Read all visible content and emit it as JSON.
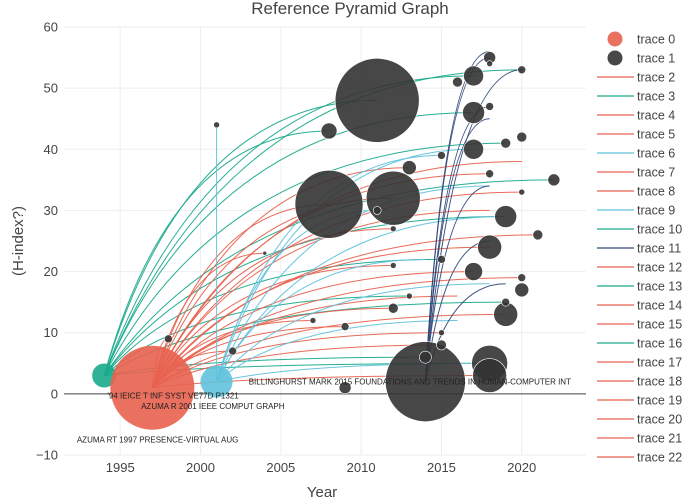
{
  "chart_data": {
    "type": "scatter",
    "title": "Reference Pyramid Graph",
    "xlabel": "Year",
    "ylabel": "(H-index?)",
    "xlim": [
      1991.5,
      2024
    ],
    "ylim": [
      -10,
      60
    ],
    "x_ticks": [
      1995,
      2000,
      2005,
      2010,
      2015,
      2020
    ],
    "y_ticks": [
      -10,
      0,
      10,
      20,
      30,
      40,
      50,
      60
    ],
    "grid": true,
    "legend_position": "right",
    "legend": [
      "trace 0",
      "trace 1",
      "trace 2",
      "trace 3",
      "trace 4",
      "trace 5",
      "trace 6",
      "trace 7",
      "trace 8",
      "trace 9",
      "trace 10",
      "trace 11",
      "trace 12",
      "trace 13",
      "trace 14",
      "trace 15",
      "trace 16",
      "trace 17",
      "trace 18",
      "trace 19",
      "trace 20",
      "trace 21",
      "trace 22"
    ],
    "annotations": [
      {
        "text": "BILLINGHURST MARK 2015 FOUNDATIONS AND TRENDS IN HUMAN-COMPUTER INT",
        "x": 2003,
        "y": 2
      },
      {
        "text": "'94 IEICE T INF SYST VE77D P1321",
        "x": 1994.2,
        "y": -0.3
      },
      {
        "text": "AZUMA R 2001 IEEE COMPUT GRAPH",
        "x": 1996.3,
        "y": -2
      },
      {
        "text": "AZUMA RT 1997 PRESENCE-VIRTUAL AUG",
        "x": 1992.3,
        "y": -7.5
      }
    ],
    "series": [
      {
        "name": "trace 0",
        "color": "#e8624f",
        "points": [
          {
            "x": 1994,
            "y": 3,
            "size": 12,
            "color": "#1aaa8c"
          },
          {
            "x": 1997,
            "y": 1,
            "size": 42,
            "color": "#e8624f"
          },
          {
            "x": 2001,
            "y": 2,
            "size": 16,
            "color": "#5fc2dc"
          }
        ]
      },
      {
        "name": "trace 1",
        "color": "#333333",
        "points": [
          {
            "x": 2011,
            "y": 48,
            "size": 42
          },
          {
            "x": 2008,
            "y": 31,
            "size": 34
          },
          {
            "x": 2012,
            "y": 32,
            "size": 27
          },
          {
            "x": 2014,
            "y": 2,
            "size": 40
          },
          {
            "x": 2018,
            "y": 5,
            "size": 18
          },
          {
            "x": 2018,
            "y": 3,
            "size": 17
          },
          {
            "x": 2017,
            "y": 46,
            "size": 11
          },
          {
            "x": 2017,
            "y": 40,
            "size": 10
          },
          {
            "x": 2019,
            "y": 29,
            "size": 11
          },
          {
            "x": 2018,
            "y": 24,
            "size": 12
          },
          {
            "x": 2019,
            "y": 13,
            "size": 12
          },
          {
            "x": 2017,
            "y": 52,
            "size": 10
          },
          {
            "x": 2008,
            "y": 43,
            "size": 8
          },
          {
            "x": 2013,
            "y": 37,
            "size": 7
          },
          {
            "x": 2017,
            "y": 20,
            "size": 9
          },
          {
            "x": 2020,
            "y": 17,
            "size": 7
          },
          {
            "x": 2022,
            "y": 35,
            "size": 6
          },
          {
            "x": 2021,
            "y": 26,
            "size": 5
          },
          {
            "x": 2020,
            "y": 42,
            "size": 5
          },
          {
            "x": 2019,
            "y": 41,
            "size": 5
          },
          {
            "x": 2016,
            "y": 51,
            "size": 5
          },
          {
            "x": 2018,
            "y": 55,
            "size": 6
          },
          {
            "x": 2020,
            "y": 53,
            "size": 4
          },
          {
            "x": 2018,
            "y": 47,
            "size": 4
          },
          {
            "x": 2018,
            "y": 36,
            "size": 4
          },
          {
            "x": 2020,
            "y": 33,
            "size": 3
          },
          {
            "x": 2020,
            "y": 19,
            "size": 4
          },
          {
            "x": 2019,
            "y": 15,
            "size": 4
          },
          {
            "x": 2014,
            "y": 6,
            "size": 6
          },
          {
            "x": 2015,
            "y": 8,
            "size": 5
          },
          {
            "x": 2015,
            "y": 22,
            "size": 4
          },
          {
            "x": 2015,
            "y": 39,
            "size": 4
          },
          {
            "x": 2012,
            "y": 14,
            "size": 5
          },
          {
            "x": 2009,
            "y": 11,
            "size": 4
          },
          {
            "x": 2009,
            "y": 1,
            "size": 6
          },
          {
            "x": 2002,
            "y": 7,
            "size": 4
          },
          {
            "x": 2001,
            "y": 44,
            "size": 3
          },
          {
            "x": 1998,
            "y": 9,
            "size": 4
          },
          {
            "x": 2011,
            "y": 30,
            "size": 4
          },
          {
            "x": 2012,
            "y": 27,
            "size": 3
          },
          {
            "x": 2012,
            "y": 21,
            "size": 3
          },
          {
            "x": 2007,
            "y": 12,
            "size": 3
          },
          {
            "x": 2013,
            "y": 16,
            "size": 3
          },
          {
            "x": 2015,
            "y": 10,
            "size": 3
          },
          {
            "x": 2018,
            "y": 54,
            "size": 3
          },
          {
            "x": 2004,
            "y": 23,
            "size": 2
          }
        ]
      },
      {
        "name": "trace 2",
        "color": "#e8624f"
      },
      {
        "name": "trace 3",
        "color": "#1aaa8c"
      },
      {
        "name": "trace 4",
        "color": "#e8624f"
      },
      {
        "name": "trace 5",
        "color": "#e8624f"
      },
      {
        "name": "trace 6",
        "color": "#5fc2dc"
      },
      {
        "name": "trace 7",
        "color": "#e8624f"
      },
      {
        "name": "trace 8",
        "color": "#e8624f"
      },
      {
        "name": "trace 9",
        "color": "#5fc2dc"
      },
      {
        "name": "trace 10",
        "color": "#1aaa8c"
      },
      {
        "name": "trace 11",
        "color": "#34497a"
      },
      {
        "name": "trace 12",
        "color": "#e8624f"
      },
      {
        "name": "trace 13",
        "color": "#1aaa8c"
      },
      {
        "name": "trace 14",
        "color": "#e8624f"
      },
      {
        "name": "trace 15",
        "color": "#e8624f"
      },
      {
        "name": "trace 16",
        "color": "#1aaa8c"
      },
      {
        "name": "trace 17",
        "color": "#e8624f"
      },
      {
        "name": "trace 18",
        "color": "#e8624f"
      },
      {
        "name": "trace 19",
        "color": "#e8624f"
      },
      {
        "name": "trace 20",
        "color": "#e8624f"
      },
      {
        "name": "trace 21",
        "color": "#e8624f"
      },
      {
        "name": "trace 22",
        "color": "#e8624f"
      }
    ],
    "links": [
      {
        "from": [
          1994,
          3
        ],
        "to": [
          2011,
          48
        ],
        "color": "#1aaa8c"
      },
      {
        "from": [
          1994,
          3
        ],
        "to": [
          2017,
          52
        ],
        "color": "#1aaa8c"
      },
      {
        "from": [
          1994,
          3
        ],
        "to": [
          2017,
          46
        ],
        "color": "#1aaa8c"
      },
      {
        "from": [
          1994,
          3
        ],
        "to": [
          2019,
          41
        ],
        "color": "#1aaa8c"
      },
      {
        "from": [
          1994,
          3
        ],
        "to": [
          2022,
          35
        ],
        "color": "#1aaa8c"
      },
      {
        "from": [
          1994,
          3
        ],
        "to": [
          2019,
          29
        ],
        "color": "#1aaa8c"
      },
      {
        "from": [
          1994,
          3
        ],
        "to": [
          2015,
          22
        ],
        "color": "#1aaa8c"
      },
      {
        "from": [
          1994,
          3
        ],
        "to": [
          2008,
          43
        ],
        "color": "#1aaa8c"
      },
      {
        "from": [
          1994,
          3
        ],
        "to": [
          2020,
          53
        ],
        "color": "#1aaa8c"
      },
      {
        "from": [
          1994,
          3
        ],
        "to": [
          2018,
          5
        ],
        "color": "#1aaa8c"
      },
      {
        "from": [
          1994,
          3
        ],
        "to": [
          2013,
          16
        ],
        "color": "#1aaa8c"
      },
      {
        "from": [
          1994,
          3
        ],
        "to": [
          2019,
          15
        ],
        "color": "#1aaa8c"
      },
      {
        "from": [
          1994,
          3
        ],
        "to": [
          2014,
          6
        ],
        "color": "#1aaa8c"
      },
      {
        "from": [
          1997,
          1
        ],
        "to": [
          2020,
          38
        ],
        "color": "#e8624f"
      },
      {
        "from": [
          1997,
          1
        ],
        "to": [
          2020,
          33
        ],
        "color": "#e8624f"
      },
      {
        "from": [
          1997,
          1
        ],
        "to": [
          2021,
          26
        ],
        "color": "#e8624f"
      },
      {
        "from": [
          1997,
          1
        ],
        "to": [
          2020,
          19
        ],
        "color": "#e8624f"
      },
      {
        "from": [
          1997,
          1
        ],
        "to": [
          2019,
          13
        ],
        "color": "#e8624f"
      },
      {
        "from": [
          1997,
          1
        ],
        "to": [
          2018,
          36
        ],
        "color": "#e8624f"
      },
      {
        "from": [
          1997,
          1
        ],
        "to": [
          2018,
          24
        ],
        "color": "#e8624f"
      },
      {
        "from": [
          1997,
          1
        ],
        "to": [
          2017,
          20
        ],
        "color": "#e8624f"
      },
      {
        "from": [
          1997,
          1
        ],
        "to": [
          2012,
          32
        ],
        "color": "#e8624f"
      },
      {
        "from": [
          1997,
          1
        ],
        "to": [
          2008,
          31
        ],
        "color": "#e8624f"
      },
      {
        "from": [
          1997,
          1
        ],
        "to": [
          2013,
          37
        ],
        "color": "#e8624f"
      },
      {
        "from": [
          1997,
          1
        ],
        "to": [
          2012,
          27
        ],
        "color": "#e8624f"
      },
      {
        "from": [
          1997,
          1
        ],
        "to": [
          2012,
          21
        ],
        "color": "#e8624f"
      },
      {
        "from": [
          1997,
          1
        ],
        "to": [
          2012,
          14
        ],
        "color": "#e8624f"
      },
      {
        "from": [
          1997,
          1
        ],
        "to": [
          2009,
          11
        ],
        "color": "#e8624f"
      },
      {
        "from": [
          1997,
          1
        ],
        "to": [
          2007,
          12
        ],
        "color": "#e8624f"
      },
      {
        "from": [
          1997,
          1
        ],
        "to": [
          2015,
          10
        ],
        "color": "#e8624f"
      },
      {
        "from": [
          1997,
          1
        ],
        "to": [
          2015,
          8
        ],
        "color": "#e8624f"
      },
      {
        "from": [
          1997,
          1
        ],
        "to": [
          2018,
          3
        ],
        "color": "#e8624f"
      },
      {
        "from": [
          1997,
          1
        ],
        "to": [
          2004,
          23
        ],
        "color": "#e8624f"
      },
      {
        "from": [
          1997,
          1
        ],
        "to": [
          2018,
          30
        ],
        "color": "#e8624f"
      },
      {
        "from": [
          1997,
          1
        ],
        "to": [
          2016,
          16
        ],
        "color": "#e8624f"
      },
      {
        "from": [
          1997,
          1
        ],
        "to": [
          1998,
          9
        ],
        "color": "#e8624f"
      },
      {
        "from": [
          1997,
          1
        ],
        "to": [
          2002,
          7
        ],
        "color": "#e8624f"
      },
      {
        "from": [
          2001,
          2
        ],
        "to": [
          2001,
          44
        ],
        "color": "#5fc2dc"
      },
      {
        "from": [
          2001,
          2
        ],
        "to": [
          2015,
          39
        ],
        "color": "#5fc2dc"
      },
      {
        "from": [
          2001,
          2
        ],
        "to": [
          2017,
          40
        ],
        "color": "#5fc2dc"
      },
      {
        "from": [
          2001,
          2
        ],
        "to": [
          2011,
          30
        ],
        "color": "#5fc2dc"
      },
      {
        "from": [
          2001,
          2
        ],
        "to": [
          2018,
          34
        ],
        "color": "#5fc2dc"
      },
      {
        "from": [
          2001,
          2
        ],
        "to": [
          2019,
          29
        ],
        "color": "#5fc2dc"
      },
      {
        "from": [
          2001,
          2
        ],
        "to": [
          2014,
          22
        ],
        "color": "#5fc2dc"
      },
      {
        "from": [
          2001,
          2
        ],
        "to": [
          2018,
          18
        ],
        "color": "#5fc2dc"
      },
      {
        "from": [
          2001,
          2
        ],
        "to": [
          2018,
          5
        ],
        "color": "#5fc2dc"
      },
      {
        "from": [
          2001,
          2
        ],
        "to": [
          2016,
          12
        ],
        "color": "#5fc2dc"
      },
      {
        "from": [
          2014,
          2
        ],
        "to": [
          2018,
          56
        ],
        "color": "#34497a"
      },
      {
        "from": [
          2014,
          2
        ],
        "to": [
          2020,
          53
        ],
        "color": "#34497a"
      },
      {
        "from": [
          2014,
          2
        ],
        "to": [
          2018,
          55
        ],
        "color": "#34497a"
      },
      {
        "from": [
          2014,
          2
        ],
        "to": [
          2018,
          47
        ],
        "color": "#34497a"
      },
      {
        "from": [
          2014,
          2
        ],
        "to": [
          2018,
          45
        ],
        "color": "#34497a"
      },
      {
        "from": [
          2014,
          2
        ],
        "to": [
          2018,
          34
        ],
        "color": "#34497a"
      },
      {
        "from": [
          2014,
          2
        ],
        "to": [
          2018,
          25
        ],
        "color": "#34497a"
      },
      {
        "from": [
          2014,
          2
        ],
        "to": [
          2019,
          18
        ],
        "color": "#34497a"
      }
    ]
  }
}
